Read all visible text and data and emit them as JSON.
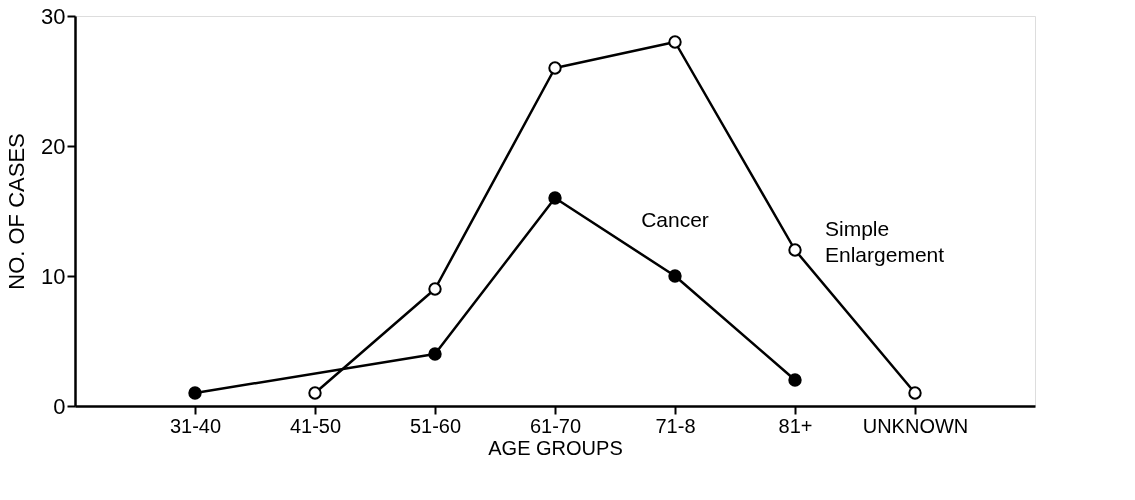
{
  "chart_data": {
    "type": "line",
    "xlabel": "AGE GROUPS",
    "ylabel": "NO. OF CASES",
    "categories": [
      "31-40",
      "41-50",
      "51-60",
      "61-70",
      "71-8",
      "81+",
      "UNKNOWN"
    ],
    "series": [
      {
        "name": "Cancer",
        "color": "#000000",
        "values": [
          1,
          null,
          4,
          16,
          10,
          2,
          null
        ]
      },
      {
        "name": "Simple Enlargement",
        "color": "#000000",
        "values": [
          null,
          1,
          9,
          26,
          28,
          12,
          1
        ]
      }
    ],
    "ylim": [
      0,
      30
    ],
    "yticks": [
      0,
      10,
      20,
      30
    ],
    "marker": "circle",
    "line_style": "solid"
  }
}
